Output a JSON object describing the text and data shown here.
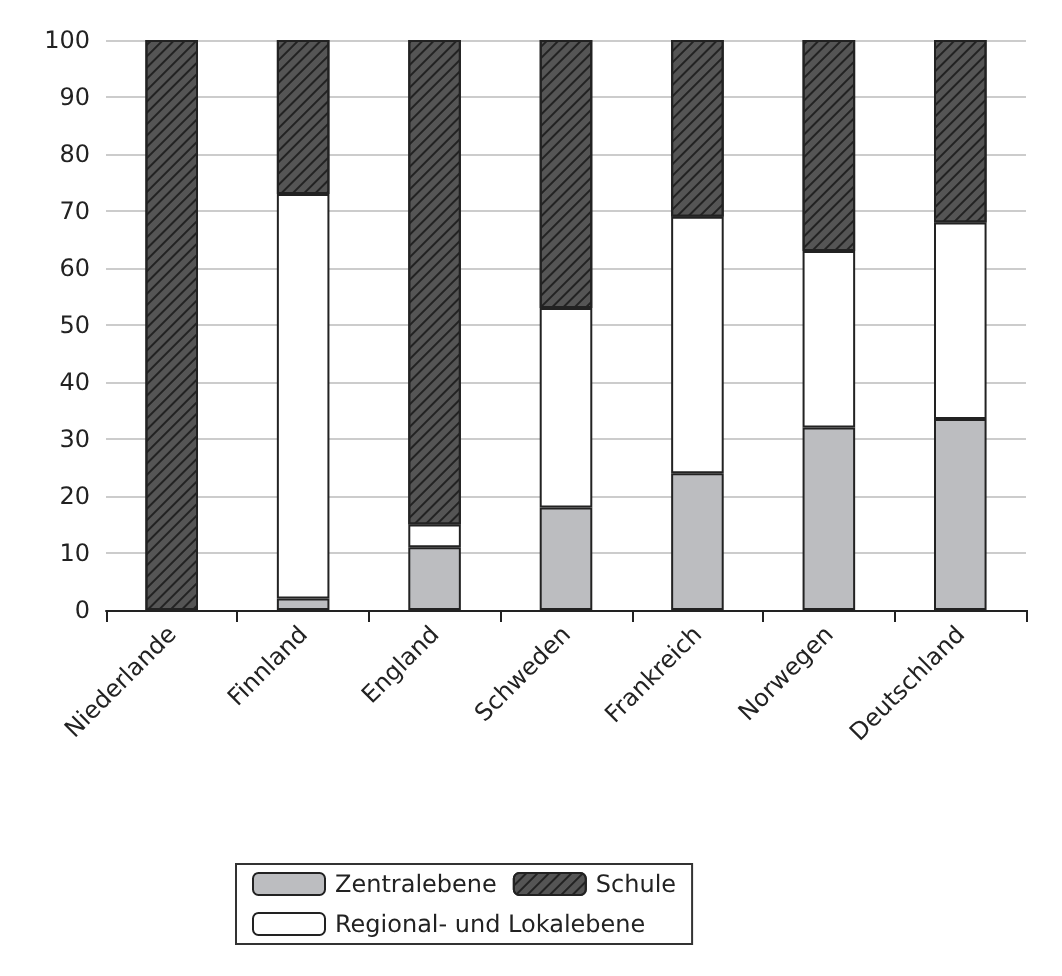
{
  "chart_data": {
    "type": "bar",
    "stacked": true,
    "categories": [
      "Niederlande",
      "Finnland",
      "England",
      "Schweden",
      "Frankreich",
      "Norwegen",
      "Deutschland"
    ],
    "series": [
      {
        "name": "Zentralebene",
        "color": "#bcbdc0",
        "values": [
          0,
          2,
          11,
          18,
          24,
          32,
          33.5
        ]
      },
      {
        "name": "Regional- und Lokalebene",
        "color": "#ffffff",
        "values": [
          0,
          71,
          4,
          35,
          45,
          31,
          34.5
        ]
      },
      {
        "name": "Schule",
        "color": "#555555",
        "values": [
          100,
          27,
          85,
          47,
          31,
          37,
          32
        ]
      }
    ],
    "ylim": [
      0,
      100
    ],
    "yticks": [
      0,
      10,
      20,
      30,
      40,
      50,
      60,
      70,
      80,
      90,
      100
    ],
    "grid": "y",
    "legend": "bottom"
  }
}
